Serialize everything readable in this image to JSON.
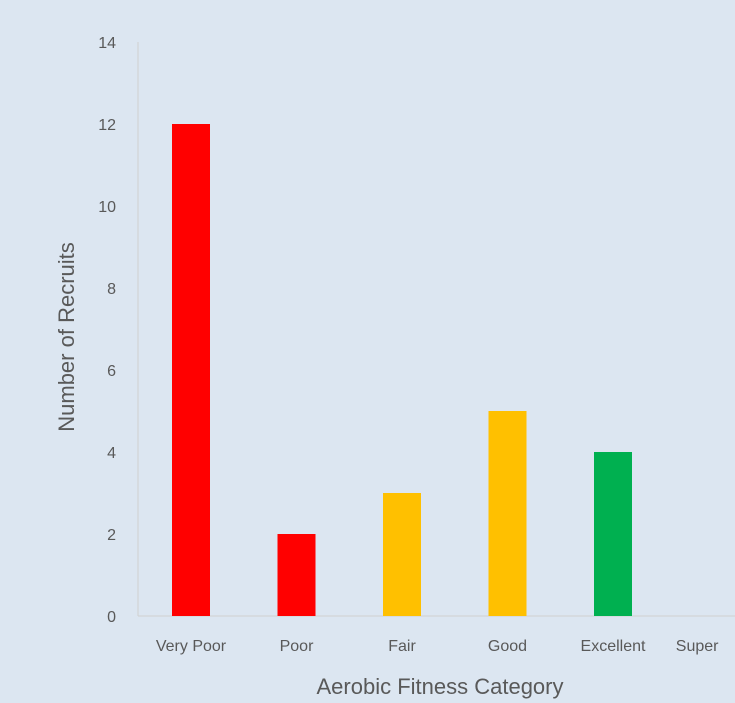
{
  "chart_data": {
    "type": "bar",
    "title": "",
    "xlabel": "Aerobic Fitness Category",
    "ylabel": "Number of Recruits",
    "categories": [
      "Very Poor",
      "Poor",
      "Fair",
      "Good",
      "Excellent",
      "Super"
    ],
    "values": [
      12,
      2,
      3,
      5,
      4,
      0
    ],
    "bar_colors": [
      "#ff0000",
      "#ff0000",
      "#ffc000",
      "#ffc000",
      "#00b050",
      "#00b050"
    ],
    "ylim": [
      0,
      14
    ],
    "yticks": [
      0,
      2,
      4,
      6,
      8,
      10,
      12,
      14
    ],
    "grid": false,
    "legend": "none"
  }
}
